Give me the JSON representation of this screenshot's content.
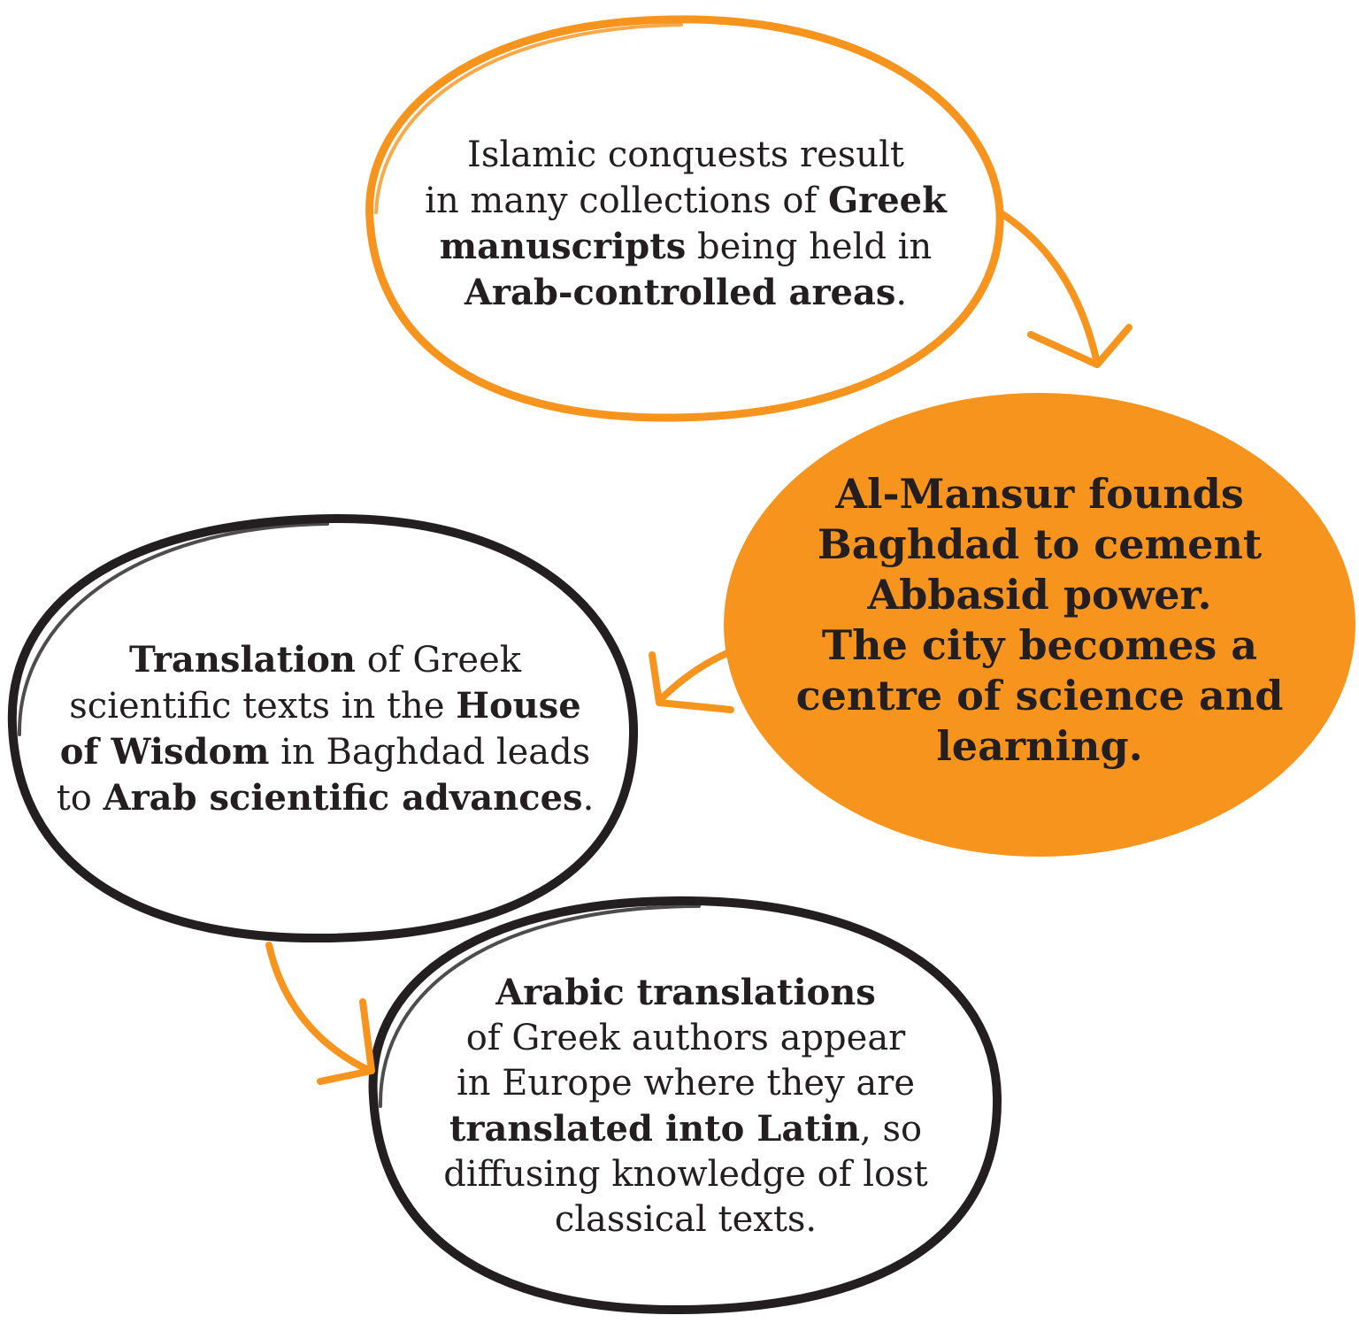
{
  "colors": {
    "accent": "#f7941d",
    "ink": "#231f20",
    "background": "#ffffff"
  },
  "nodes": {
    "greek": {
      "l1": "Islamic conquests result",
      "l2a": "in many collections of ",
      "l2b": "Greek",
      "l3a": "manuscripts",
      "l3b": " being held in",
      "l4a": "Arab-controlled areas",
      "l4b": "."
    },
    "mansur": {
      "l1": "Al-Mansur founds",
      "l2": "Baghdad to cement",
      "l3": "Abbasid power.",
      "l4": "The city becomes a",
      "l5": "centre of science and",
      "l6": "learning."
    },
    "translation": {
      "l1a": "Translation",
      "l1b": " of Greek",
      "l2a": "scientific texts in the ",
      "l2b": "House",
      "l3a": "of Wisdom",
      "l3b": " in Baghdad leads",
      "l4a": "to ",
      "l4b": "Arab scientific advances",
      "l4c": "."
    },
    "arabic": {
      "l1": "Arabic translations",
      "l2": "of Greek authors appear",
      "l3": "in Europe where they are",
      "l4a": "translated into Latin",
      "l4b": ", so",
      "l5": "diffusing knowledge of lost",
      "l6": "classical texts."
    }
  }
}
